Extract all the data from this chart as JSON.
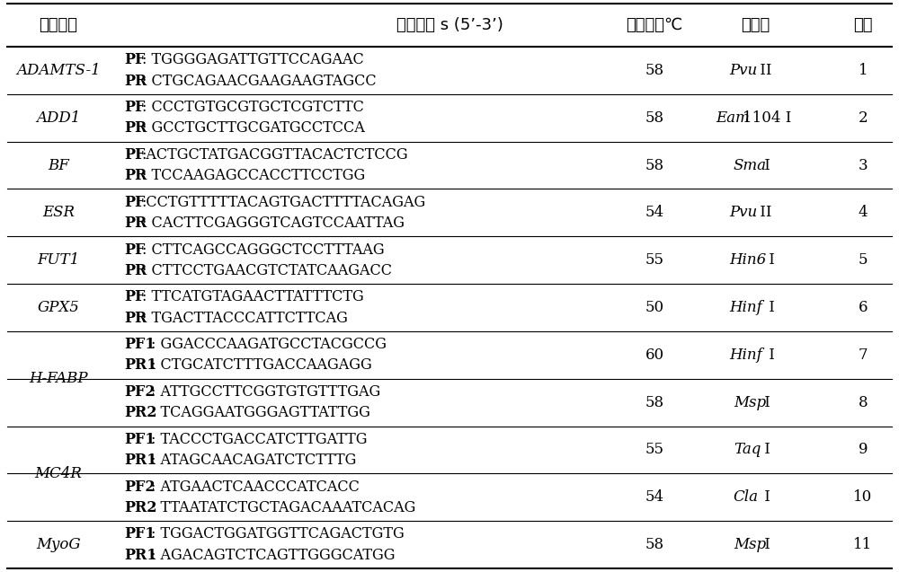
{
  "col_headers": [
    "基因名称",
    "引物序列 s (5’-3’)",
    "退火温度℃",
    "内切酶",
    "位点"
  ],
  "rows": [
    {
      "gene": "ADAMTS-1",
      "gene_row": 0,
      "p1_label": "PF",
      "p1_colon": ": ",
      "p1_seq": "TGGGGAGATTGTTCCAGAAC",
      "p2_label": "PR",
      "p2_colon": ": ",
      "p2_seq": "CTGCAGAACGAAGAAGTAGCC",
      "temp": "58",
      "enz_italic": "Pvu",
      "enz_roman": " II",
      "site": "1"
    },
    {
      "gene": "ADD1",
      "gene_row": 1,
      "p1_label": "PF",
      "p1_colon": ": ",
      "p1_seq": "CCCTGTGCGTGCTCGTCTTC",
      "p2_label": "PR",
      "p2_colon": ": ",
      "p2_seq": "GCCTGCTTGCGATGCCTCCA",
      "temp": "58",
      "enz_italic": "Eam",
      "enz_roman": "1104 I",
      "site": "2"
    },
    {
      "gene": "BF",
      "gene_row": 2,
      "p1_label": "PF",
      "p1_colon": ":",
      "p1_seq": "ACTGCTATGACGGTTACACTCTCCG",
      "p2_label": "PR",
      "p2_colon": ": ",
      "p2_seq": "TCCAAGAGCCACCTTCCTGG",
      "temp": "58",
      "enz_italic": "Sma",
      "enz_roman": " I",
      "site": "3"
    },
    {
      "gene": "ESR",
      "gene_row": 3,
      "p1_label": "PF",
      "p1_colon": ":",
      "p1_seq": "CCTGTTTTTACAGTGACTTTTACAGAG",
      "p2_label": "PR",
      "p2_colon": ": ",
      "p2_seq": "CACTTCGAGGGTCAGTCCAATTAG",
      "temp": "54",
      "enz_italic": "Pvu",
      "enz_roman": " II",
      "site": "4"
    },
    {
      "gene": "FUT1",
      "gene_row": 4,
      "p1_label": "PF",
      "p1_colon": ": ",
      "p1_seq": "CTTCAGCCAGGGCTCCTTTAAG",
      "p2_label": "PR",
      "p2_colon": ": ",
      "p2_seq": "CTTCCTGAACGTCTATCAAGACC",
      "temp": "55",
      "enz_italic": "Hin6",
      "enz_roman": " I",
      "site": "5"
    },
    {
      "gene": "GPX5",
      "gene_row": 5,
      "p1_label": "PF",
      "p1_colon": ": ",
      "p1_seq": "TTCATGTAGAACTTATTTCTG",
      "p2_label": "PR",
      "p2_colon": ": ",
      "p2_seq": "TGACTTACCCATTCTTCAG",
      "temp": "50",
      "enz_italic": "Hinf",
      "enz_roman": " I",
      "site": "6"
    },
    {
      "gene": "",
      "gene_row": -1,
      "p1_label": "PF1",
      "p1_colon": ": ",
      "p1_seq": "GGACCCAAGATGCCTACGCCG",
      "p2_label": "PR1",
      "p2_colon": ": ",
      "p2_seq": "CTGCATCTTTGACCAAGAGG",
      "temp": "60",
      "enz_italic": "Hinf",
      "enz_roman": " I",
      "site": "7"
    },
    {
      "gene": "H-FABP",
      "gene_row": 67,
      "p1_label": "PF2",
      "p1_colon": ": ",
      "p1_seq": "ATTGCCTTCGGTGTGTTTGAG",
      "p2_label": "PR2",
      "p2_colon": ": ",
      "p2_seq": "TCAGGAATGGGAGTTATTGG",
      "temp": "58",
      "enz_italic": "Msp",
      "enz_roman": " I",
      "site": "8"
    },
    {
      "gene": "",
      "gene_row": -1,
      "p1_label": "PF1",
      "p1_colon": ": ",
      "p1_seq": "TACCCTGACCATCTTGATTG",
      "p2_label": "PR1",
      "p2_colon": ": ",
      "p2_seq": "ATAGCAACAGATCTCTTTG",
      "temp": "55",
      "enz_italic": "Taq",
      "enz_roman": " I",
      "site": "9"
    },
    {
      "gene": "MC4R",
      "gene_row": 89,
      "p1_label": "PF2",
      "p1_colon": ": ",
      "p1_seq": "ATGAACTCAACCCATCACC",
      "p2_label": "PR2",
      "p2_colon": ": ",
      "p2_seq": "TTAATATCTGCTAGACAAATCACAG",
      "temp": "54",
      "enz_italic": "Cla",
      "enz_roman": " I",
      "site": "10"
    },
    {
      "gene": "MyoG",
      "gene_row": 10,
      "p1_label": "PF1",
      "p1_colon": ": ",
      "p1_seq": "TGGACTGGATGGTTCAGACTGTG",
      "p2_label": "PR1",
      "p2_colon": ": ",
      "p2_seq": "AGACAGTCTCAGTTGGGCATGG",
      "temp": "58",
      "enz_italic": "Msp",
      "enz_roman": " I",
      "site": "11"
    }
  ],
  "background_color": "#ffffff",
  "line_color": "#000000"
}
